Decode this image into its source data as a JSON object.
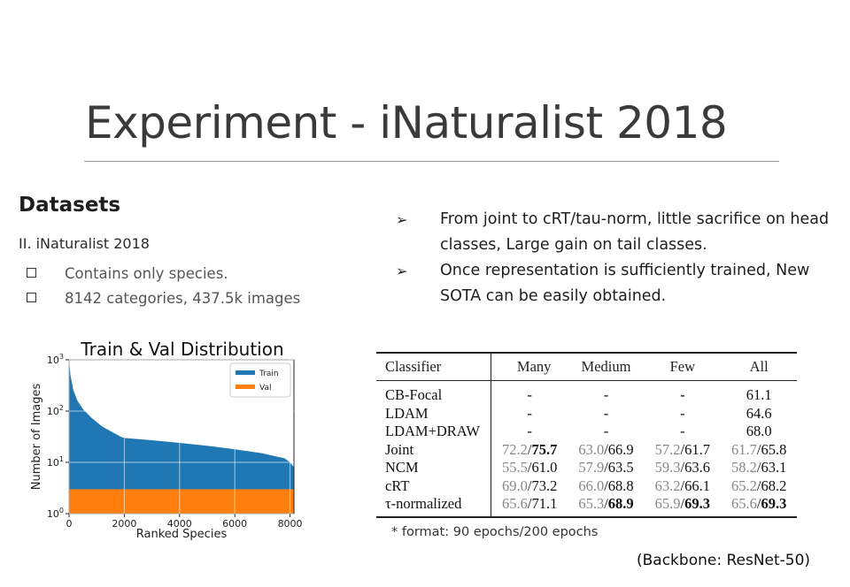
{
  "slide": {
    "title": "Experiment - iNaturalist 2018"
  },
  "datasets": {
    "heading": "Datasets",
    "subheading": "II. iNaturalist 2018",
    "items": [
      "Contains only species.",
      "8142 categories, 437.5k images"
    ]
  },
  "bullets": {
    "marker": "➢",
    "items": [
      "From joint to cRT/tau-norm, little sacrifice on head classes, Large gain on tail classes.",
      "Once representation is sufficiently trained, New SOTA can be easily obtained."
    ]
  },
  "chart_data": {
    "type": "area",
    "title": "Train & Val Distribution",
    "xlabel": "Ranked Species",
    "ylabel": "Number of Images",
    "xlim": [
      0,
      8142
    ],
    "ylim": [
      1,
      1000
    ],
    "yscale": "log",
    "xticks": [
      "0",
      "2000",
      "4000",
      "6000",
      "8000"
    ],
    "yticks": [
      {
        "base": "10",
        "exp": "0"
      },
      {
        "base": "10",
        "exp": "1"
      },
      {
        "base": "10",
        "exp": "2"
      },
      {
        "base": "10",
        "exp": "3"
      }
    ],
    "legend_position": "top-right",
    "series": [
      {
        "name": "Train",
        "color": "#1f77b4",
        "x": [
          0,
          50,
          150,
          300,
          500,
          800,
          1200,
          1600,
          1900,
          2000,
          3000,
          4000,
          5000,
          6000,
          7000,
          7500,
          7800,
          8000,
          8142
        ],
        "y": [
          1000,
          500,
          260,
          160,
          110,
          75,
          50,
          38,
          31,
          30,
          27,
          24,
          21,
          18,
          15,
          13,
          12,
          10,
          8
        ]
      },
      {
        "name": "Val",
        "color": "#ff7f0e",
        "x": [
          0,
          8142
        ],
        "y": [
          3,
          3
        ]
      }
    ]
  },
  "results_table": {
    "columns": [
      "Classifier",
      "Many",
      "Medium",
      "Few",
      "All"
    ],
    "rows": [
      {
        "name": "CB-Focal",
        "many": {
          "a": "-"
        },
        "medium": {
          "a": "-"
        },
        "few": {
          "a": "-"
        },
        "all": {
          "a": "61.1"
        }
      },
      {
        "name": "LDAM",
        "many": {
          "a": "-"
        },
        "medium": {
          "a": "-"
        },
        "few": {
          "a": "-"
        },
        "all": {
          "a": "64.6"
        }
      },
      {
        "name": "LDAM+DRAW",
        "many": {
          "a": "-"
        },
        "medium": {
          "a": "-"
        },
        "few": {
          "a": "-"
        },
        "all": {
          "a": "68.0"
        }
      },
      {
        "name": "Joint",
        "many": {
          "a": "72.2",
          "b": "75.7",
          "bold": true
        },
        "medium": {
          "a": "63.0",
          "b": "66.9"
        },
        "few": {
          "a": "57.2",
          "b": "61.7"
        },
        "all": {
          "a": "61.7",
          "b": "65.8"
        }
      },
      {
        "name": "NCM",
        "many": {
          "a": "55.5",
          "b": "61.0"
        },
        "medium": {
          "a": "57.9",
          "b": "63.5"
        },
        "few": {
          "a": "59.3",
          "b": "63.6"
        },
        "all": {
          "a": "58.2",
          "b": "63.1"
        }
      },
      {
        "name": "cRT",
        "many": {
          "a": "69.0",
          "b": "73.2"
        },
        "medium": {
          "a": "66.0",
          "b": "68.8"
        },
        "few": {
          "a": "63.2",
          "b": "66.1"
        },
        "all": {
          "a": "65.2",
          "b": "68.2"
        }
      },
      {
        "name": "τ-normalized",
        "many": {
          "a": "65.6",
          "b": "71.1"
        },
        "medium": {
          "a": "65.3",
          "b": "68.9",
          "bold": true
        },
        "few": {
          "a": "65.9",
          "b": "69.3",
          "bold": true
        },
        "all": {
          "a": "65.6",
          "b": "69.3",
          "bold": true
        }
      }
    ]
  },
  "footnote": "* format: 90 epochs/200 epochs",
  "backbone_note": "(Backbone: ResNet-50)"
}
